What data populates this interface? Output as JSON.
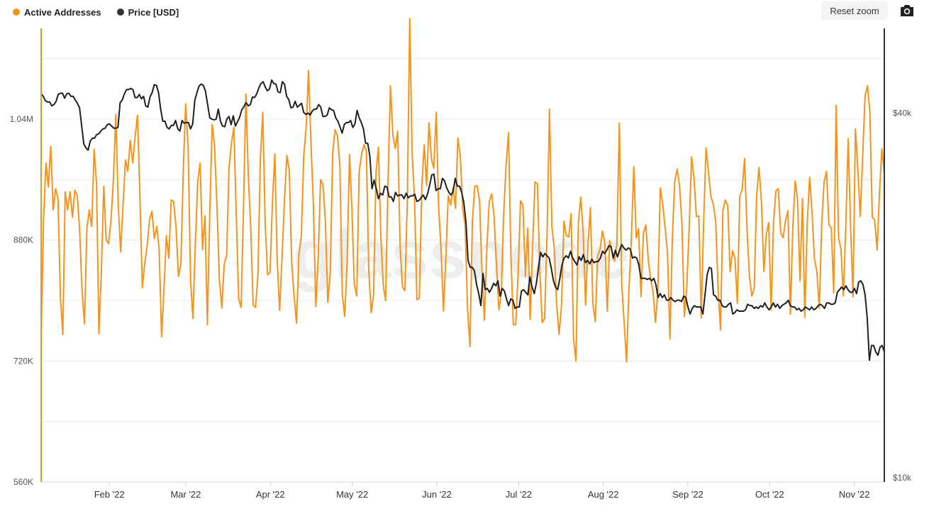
{
  "legend": {
    "active_label": "Active Addresses",
    "price_label": "Price [USD]"
  },
  "toolbar": {
    "reset_zoom_label": "Reset zoom",
    "camera_icon": "camera-icon"
  },
  "watermark": "glassnode",
  "colors": {
    "active": "#F7931A",
    "price": "#1f1f1f",
    "grid": "#ececec",
    "axis_text": "#555555"
  },
  "chart_data": {
    "type": "line",
    "x_start": "2022-01-07",
    "x_end": "2022-11-12",
    "x_ticks": [
      "Feb '22",
      "Mar '22",
      "Apr '22",
      "May '22",
      "Jun '22",
      "Jul '22",
      "Aug '22",
      "Sep '22",
      "Oct '22",
      "Nov '22"
    ],
    "y_left": {
      "ylim": [
        560000,
        1160000
      ],
      "ticks": [
        560000,
        720000,
        880000,
        1040000
      ],
      "tick_labels": [
        "560K",
        "720K",
        "880K",
        "1.04M"
      ]
    },
    "y_right": {
      "scale": "log",
      "ylim": [
        10000,
        55000
      ],
      "ticks": [
        10000,
        40000
      ],
      "tick_labels": [
        "$10k",
        "$40k"
      ]
    },
    "grid": true,
    "legend_position": "top-left",
    "series": [
      {
        "name": "Active Addresses",
        "axis": "left",
        "values": [
          748000,
          908000,
          982000,
          950000,
          1004000,
          920000,
          948000,
          935000,
          804000,
          755000,
          944000,
          920000,
          944000,
          910000,
          946000,
          939000,
          892000,
          812000,
          769000,
          896000,
          920000,
          898000,
          1000000,
          955000,
          756000,
          838000,
          951000,
          880000,
          875000,
          906000,
          959000,
          1046000,
          927000,
          864000,
          926000,
          986000,
          971000,
          1012000,
          982000,
          1016000,
          1045000,
          939000,
          817000,
          849000,
          872000,
          907000,
          918000,
          882000,
          898000,
          867000,
          752000,
          816000,
          886000,
          856000,
          933000,
          931000,
          897000,
          832000,
          848000,
          971000,
          1060000,
          1005000,
          829000,
          776000,
          874000,
          958000,
          982000,
          867000,
          912000,
          768000,
          917000,
          1033000,
          1004000,
          924000,
          827000,
          790000,
          848000,
          860000,
          976000,
          1008000,
          1029000,
          912000,
          802000,
          791000,
          923000,
          1073000,
          964000,
          896000,
          794000,
          791000,
          834000,
          987000,
          1049000,
          902000,
          834000,
          837000,
          929000,
          994000,
          852000,
          787000,
          857000,
          932000,
          992000,
          972000,
          852000,
          806000,
          770000,
          861000,
          885000,
          991000,
          1028000,
          1104000,
          1008000,
          928000,
          792000,
          855000,
          960000,
          953000,
          905000,
          798000,
          835000,
          994000,
          1026000,
          1018000,
          978000,
          809000,
          779000,
          850000,
          993000,
          921000,
          821000,
          806000,
          970000,
          993000,
          1006000,
          998000,
          839000,
          784000,
          808000,
          969000,
          1003000,
          886000,
          821000,
          800000,
          958000,
          1084000,
          1019000,
          1001000,
          1024000,
          872000,
          818000,
          813000,
          934000,
          1173000,
          994000,
          934000,
          801000,
          803000,
          950000,
          1006000,
          952000,
          1035000,
          987000,
          975000,
          1049000,
          923000,
          868000,
          786000,
          858000,
          939000,
          926000,
          949000,
          922000,
          1015000,
          991000,
          921000,
          900000,
          790000,
          739000,
          904000,
          951000,
          952000,
          931000,
          838000,
          774000,
          868000,
          931000,
          941000,
          912000,
          849000,
          788000,
          809000,
          914000,
          979000,
          1022000,
          860000,
          768000,
          768000,
          836000,
          932000,
          926000,
          832000,
          896000,
          775000,
          872000,
          957000,
          954000,
          838000,
          771000,
          776000,
          887000,
          1053000,
          898000,
          869000,
          794000,
          755000,
          793000,
          905000,
          886000,
          884000,
          915000,
          749000,
          720000,
          902000,
          937000,
          890000,
          794000,
          876000,
          923000,
          797000,
          772000,
          859000,
          868000,
          892000,
          876000,
          786000,
          879000,
          865000,
          852000,
          876000,
          1035000,
          821000,
          771000,
          719000,
          816000,
          882000,
          977000,
          883000,
          895000,
          805000,
          889000,
          900000,
          855000,
          828000,
          812000,
          771000,
          811000,
          949000,
          928000,
          896000,
          864000,
          749000,
          882000,
          958000,
          974000,
          952000,
          901000,
          779000,
          817000,
          897000,
          990000,
          962000,
          911000,
          912000,
          777000,
          904000,
          1002000,
          970000,
          938000,
          927000,
          905000,
          815000,
          761000,
          919000,
          933000,
          925000,
          838000,
          866000,
          856000,
          796000,
          938000,
          947000,
          988000,
          895000,
          832000,
          806000,
          816000,
          939000,
          976000,
          930000,
          838000,
          887000,
          903000,
          787000,
          902000,
          945000,
          948000,
          889000,
          883000,
          906000,
          919000,
          782000,
          896000,
          958000,
          933000,
          826000,
          935000,
          778000,
          902000,
          963000,
          916000,
          855000,
          838000,
          790000,
          900000,
          957000,
          971000,
          900000,
          896000,
          810000,
          1058000,
          883000,
          868000,
          806000,
          896000,
          1014000,
          897000,
          805000,
          1027000,
          975000,
          911000,
          989000,
          1071000,
          1084000,
          1050000,
          910000,
          907000,
          867000,
          944000,
          1001000,
          968000
        ],
        "color": "#F7931A"
      },
      {
        "name": "Price [USD]",
        "axis": "right",
        "values": [
          43000,
          42600,
          41900,
          41700,
          41700,
          41100,
          41300,
          41800,
          42900,
          43100,
          43100,
          42300,
          43000,
          43100,
          42600,
          42600,
          42000,
          41500,
          40800,
          38100,
          35600,
          35100,
          34800,
          36000,
          36400,
          36400,
          36900,
          37000,
          37400,
          37700,
          37800,
          38300,
          38400,
          38100,
          37800,
          37800,
          37900,
          41600,
          42000,
          43000,
          43700,
          43700,
          43900,
          43700,
          42400,
          42400,
          42900,
          42200,
          42600,
          41100,
          40900,
          42500,
          43200,
          44500,
          44400,
          43200,
          40600,
          38800,
          38800,
          37900,
          37700,
          38200,
          38200,
          38900,
          37700,
          37400,
          38900,
          38500,
          38600,
          38600,
          37700,
          38400,
          42000,
          43200,
          44300,
          44600,
          44400,
          43400,
          41300,
          39300,
          39100,
          39000,
          39100,
          40600,
          38800,
          38100,
          38000,
          39100,
          39500,
          38300,
          39600,
          38100,
          38700,
          39400,
          40500,
          41000,
          41600,
          41100,
          41300,
          42500,
          42400,
          43000,
          44000,
          44700,
          45000,
          44100,
          43500,
          43800,
          45300,
          44700,
          44600,
          43300,
          43200,
          45000,
          44600,
          42600,
          42100,
          40800,
          40900,
          41800,
          40900,
          41200,
          41500,
          40100,
          39800,
          40000,
          39700,
          40300,
          40600,
          40600,
          41300,
          40900,
          39500,
          39500,
          39700,
          40800,
          40500,
          40400,
          39300,
          38800,
          38000,
          37100,
          38300,
          38600,
          38600,
          38900,
          37900,
          38400,
          40400,
          39300,
          38600,
          37700,
          35700,
          35700,
          34000,
          30100,
          31100,
          30100,
          29000,
          29600,
          29400,
          30400,
          30300,
          29200,
          29200,
          28700,
          29700,
          29300,
          29400,
          29400,
          29000,
          29600,
          29100,
          29300,
          29300,
          29500,
          28700,
          28800,
          29100,
          29400,
          28900,
          29500,
          30500,
          31700,
          31800,
          29900,
          30100,
          30100,
          31300,
          31000,
          30200,
          29700,
          29400,
          29800,
          31300,
          30400,
          30400,
          29700,
          28600,
          26600,
          23000,
          22400,
          22400,
          22100,
          21000,
          20300,
          19400,
          21900,
          20600,
          20700,
          20400,
          20700,
          21100,
          20900,
          21300,
          20100,
          20700,
          20500,
          19900,
          19400,
          19900,
          19800,
          19200,
          19300,
          19300,
          20500,
          20600,
          20400,
          20200,
          21600,
          20800,
          20300,
          21100,
          22400,
          23700,
          23300,
          23600,
          23400,
          23200,
          22300,
          21300,
          20800,
          20600,
          21500,
          22600,
          23200,
          23400,
          23200,
          23800,
          23200,
          22900,
          22600,
          23300,
          23000,
          23500,
          22800,
          23000,
          22700,
          23100,
          22800,
          22900,
          22900,
          23200,
          23800,
          23600,
          23900,
          24300,
          24200,
          23200,
          23900,
          23300,
          23900,
          24400,
          24100,
          23900,
          24100,
          24000,
          23200,
          23300,
          23200,
          22600,
          21500,
          21500,
          21500,
          21400,
          21500,
          21300,
          21500,
          21000,
          20000,
          20300,
          20000,
          20200,
          19800,
          19800,
          20000,
          19800,
          19700,
          19800,
          19800,
          19700,
          20100,
          20000,
          19300,
          18800,
          19200,
          19400,
          19300,
          19300,
          19300,
          18800,
          20200,
          21800,
          22400,
          22300,
          20200,
          20100,
          19800,
          19800,
          19400,
          19300,
          19300,
          19500,
          19600,
          18800,
          18900,
          19100,
          19000,
          19000,
          19000,
          19100,
          19500,
          19400,
          19400,
          19200,
          19300,
          19200,
          19400,
          19300,
          19600,
          19300,
          19100,
          19300,
          19600,
          19300,
          19500,
          19200,
          19400,
          19500,
          19600,
          19800,
          19400,
          19300,
          19300,
          19100,
          19200,
          19000,
          19100,
          19300,
          19200,
          19100,
          19300,
          19100,
          19200,
          19400,
          19500,
          19400,
          19200,
          19600,
          19600,
          19500,
          19500,
          19600,
          20400,
          20600,
          20800,
          20600,
          20900,
          20600,
          20400,
          20400,
          20700,
          20300,
          21200,
          21300,
          21000,
          20200,
          18500,
          15800,
          16700,
          16700,
          16300,
          16100,
          16600,
          16700,
          16300
        ]
      }
    ]
  }
}
